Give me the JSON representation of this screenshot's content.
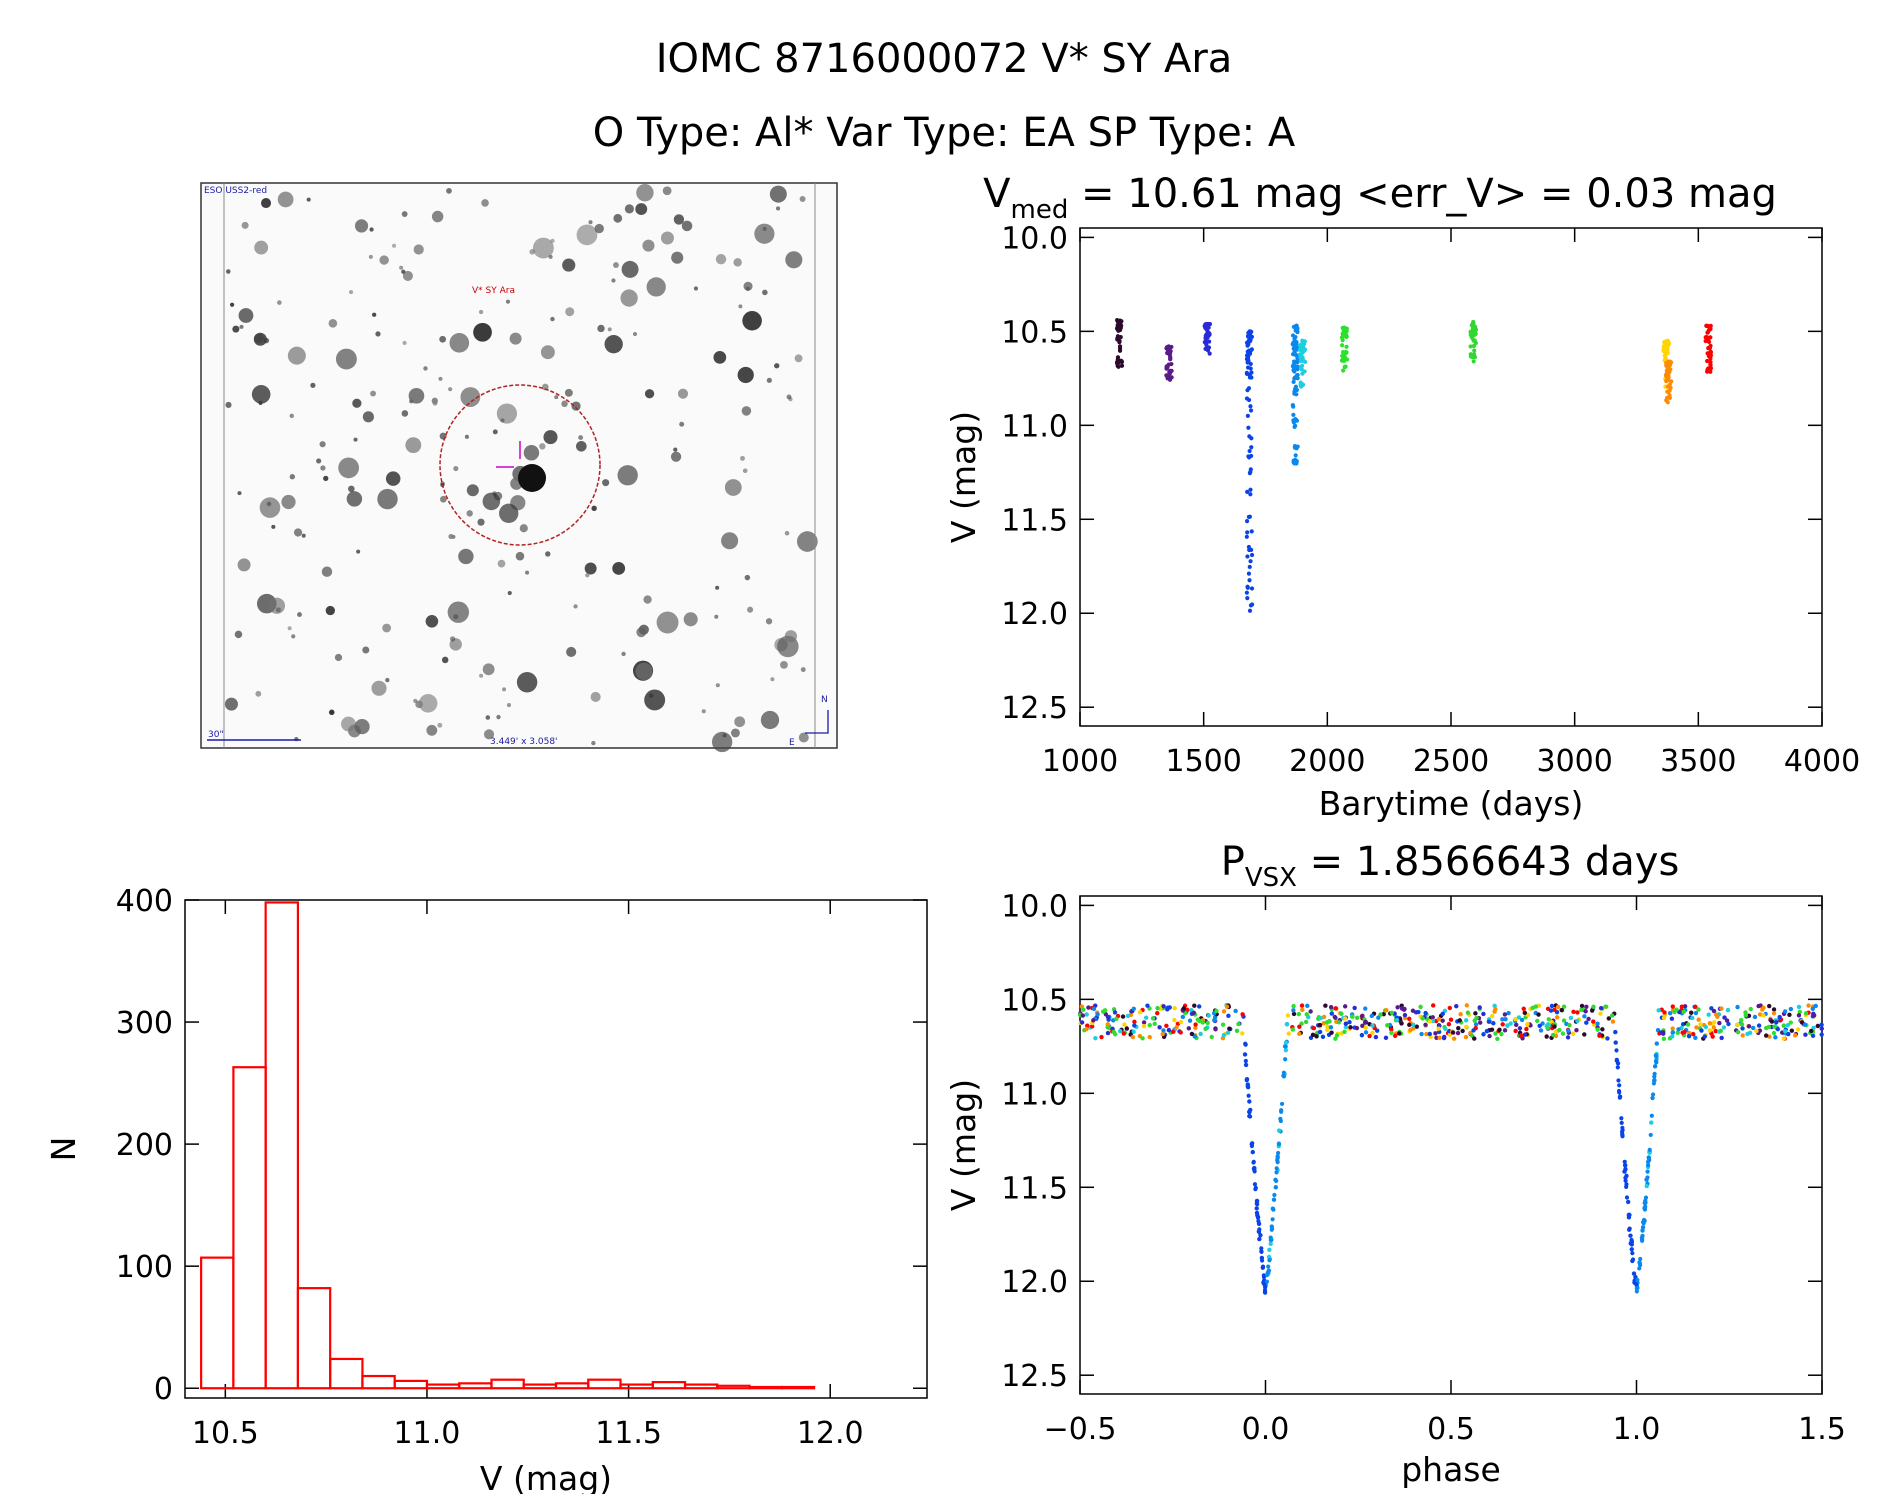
{
  "header": {
    "line1": "IOMC 8716000072   V* SY Ara",
    "line2": "O Type: Al*  Var Type: EA  SP Type: A"
  },
  "image_panel": {
    "survey_label": "ESO USS2-red",
    "target_label": "V* SY Ara",
    "scale_label": "30\"",
    "size_label": "3.449' x 3.058'",
    "north_label": "N",
    "east_label": "E"
  },
  "colors": {
    "histogram": "#ff0000",
    "axis": "#000000",
    "target_circle": "#b22222",
    "image_marker": "#cc00cc",
    "image_text": "#1a1aa6",
    "season_palette": [
      "#2b0a2b",
      "#5a1a8a",
      "#2a2ad8",
      "#0a44e8",
      "#0a88ee",
      "#1ccfe0",
      "#2ee02e",
      "#34d634",
      "#ffd400",
      "#ff8c00",
      "#ff0000"
    ]
  },
  "chart_data": [
    {
      "id": "light_curve",
      "type": "scatter",
      "title": "V",
      "title_sub": "med",
      "title_rest": " = 10.61 mag <err_V> = 0.03 mag",
      "xlabel": "Barytime (days)",
      "ylabel": "V (mag)",
      "xlim": [
        1000,
        4000
      ],
      "ylim": [
        12.6,
        9.95
      ],
      "y_inverted": true,
      "xticks": [
        1000,
        1500,
        2000,
        2500,
        3000,
        3500,
        4000
      ],
      "xtick_labels": [
        "1000",
        "1500",
        "2000",
        "2500",
        "3000",
        "3500",
        "4000"
      ],
      "yticks": [
        10.0,
        10.5,
        11.0,
        11.5,
        12.0,
        12.5
      ],
      "ytick_labels": [
        "10.0",
        "10.5",
        "11.0",
        "11.5",
        "12.0",
        "12.5"
      ],
      "seasons": [
        {
          "t": 1160,
          "v_min": 10.44,
          "v_max": 10.82,
          "color_index": 0
        },
        {
          "t": 1360,
          "v_min": 10.58,
          "v_max": 10.78,
          "color_index": 1
        },
        {
          "t": 1515,
          "v_min": 10.46,
          "v_max": 10.62,
          "color_index": 2
        },
        {
          "t": 1685,
          "v_min": 10.5,
          "v_max": 12.05,
          "eclipse": true,
          "color_index": 3
        },
        {
          "t": 1870,
          "v_min": 10.47,
          "v_max": 11.22,
          "eclipse": true,
          "color_index": 4
        },
        {
          "t": 1900,
          "v_min": 10.55,
          "v_max": 10.95,
          "color_index": 5
        },
        {
          "t": 2070,
          "v_min": 10.48,
          "v_max": 10.72,
          "color_index": 6
        },
        {
          "t": 2590,
          "v_min": 10.45,
          "v_max": 10.67,
          "color_index": 7
        },
        {
          "t": 3370,
          "v_min": 10.55,
          "v_max": 10.89,
          "color_index": 8
        },
        {
          "t": 3380,
          "v_min": 10.66,
          "v_max": 10.89,
          "color_index": 9
        },
        {
          "t": 3540,
          "v_min": 10.47,
          "v_max": 10.72,
          "color_index": 10
        }
      ]
    },
    {
      "id": "histogram",
      "type": "bar",
      "xlabel": "V (mag)",
      "ylabel": "N",
      "xlim": [
        10.4,
        12.24
      ],
      "ylim": [
        -8,
        400
      ],
      "xticks": [
        10.5,
        11.0,
        11.5,
        12.0
      ],
      "xtick_labels": [
        "10.5",
        "11.0",
        "11.5",
        "12.0"
      ],
      "yticks": [
        0,
        100,
        200,
        300,
        400
      ],
      "ytick_labels": [
        "0",
        "100",
        "200",
        "300",
        "400"
      ],
      "bin_start": 10.44,
      "bin_width": 0.08,
      "values": [
        107,
        263,
        398,
        82,
        24,
        10,
        6,
        3,
        4,
        7,
        3,
        4,
        7,
        3,
        5,
        3,
        2,
        1,
        1,
        0,
        0
      ]
    },
    {
      "id": "phased_light_curve",
      "type": "scatter",
      "title": "P",
      "title_sub": "VSX",
      "title_rest": " = 1.8566643 days",
      "period_days": 1.8566643,
      "xlabel": "phase",
      "ylabel": "V (mag)",
      "xlim": [
        -0.5,
        1.5
      ],
      "ylim": [
        12.6,
        9.95
      ],
      "y_inverted": true,
      "xticks": [
        -0.5,
        0.0,
        0.5,
        1.0,
        1.5
      ],
      "xtick_labels": [
        "−0.5",
        "0.0",
        "0.5",
        "1.0",
        "1.5"
      ],
      "yticks": [
        10.0,
        10.5,
        11.0,
        11.5,
        12.0,
        12.5
      ],
      "ytick_labels": [
        "10.0",
        "10.5",
        "11.0",
        "11.5",
        "12.0",
        "12.5"
      ],
      "baseline_mag": 10.6,
      "eclipse_depth_mag": 12.05,
      "eclipse_phases": [
        0.0,
        1.0
      ]
    }
  ]
}
